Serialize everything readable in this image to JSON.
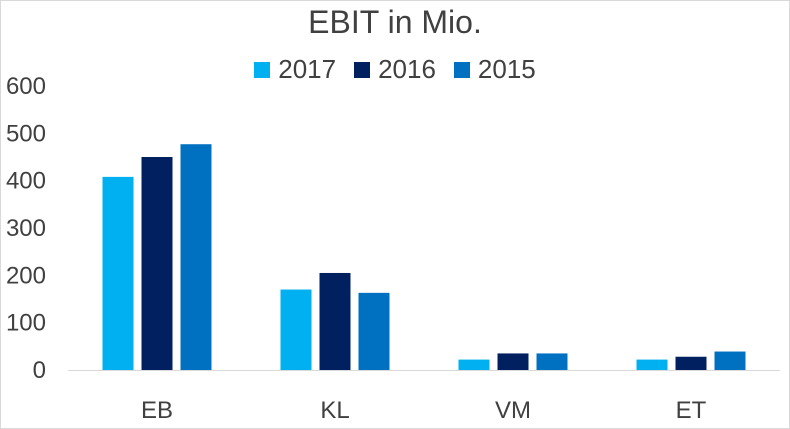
{
  "chart_data": {
    "type": "bar",
    "title": "EBIT in Mio.",
    "xlabel": "",
    "ylabel": "",
    "categories": [
      "EB",
      "KL",
      "VM",
      "ET"
    ],
    "series": [
      {
        "name": "2017",
        "color": "#00b0f0",
        "values": [
          408,
          170,
          22,
          22
        ]
      },
      {
        "name": "2016",
        "color": "#002060",
        "values": [
          450,
          205,
          35,
          28
        ]
      },
      {
        "name": "2015",
        "color": "#0070c0",
        "values": [
          477,
          163,
          35,
          39
        ]
      }
    ],
    "ylim": [
      0,
      600
    ],
    "yticks": [
      0,
      100,
      200,
      300,
      400,
      500,
      600
    ],
    "grid": false,
    "legend_position": "top"
  }
}
